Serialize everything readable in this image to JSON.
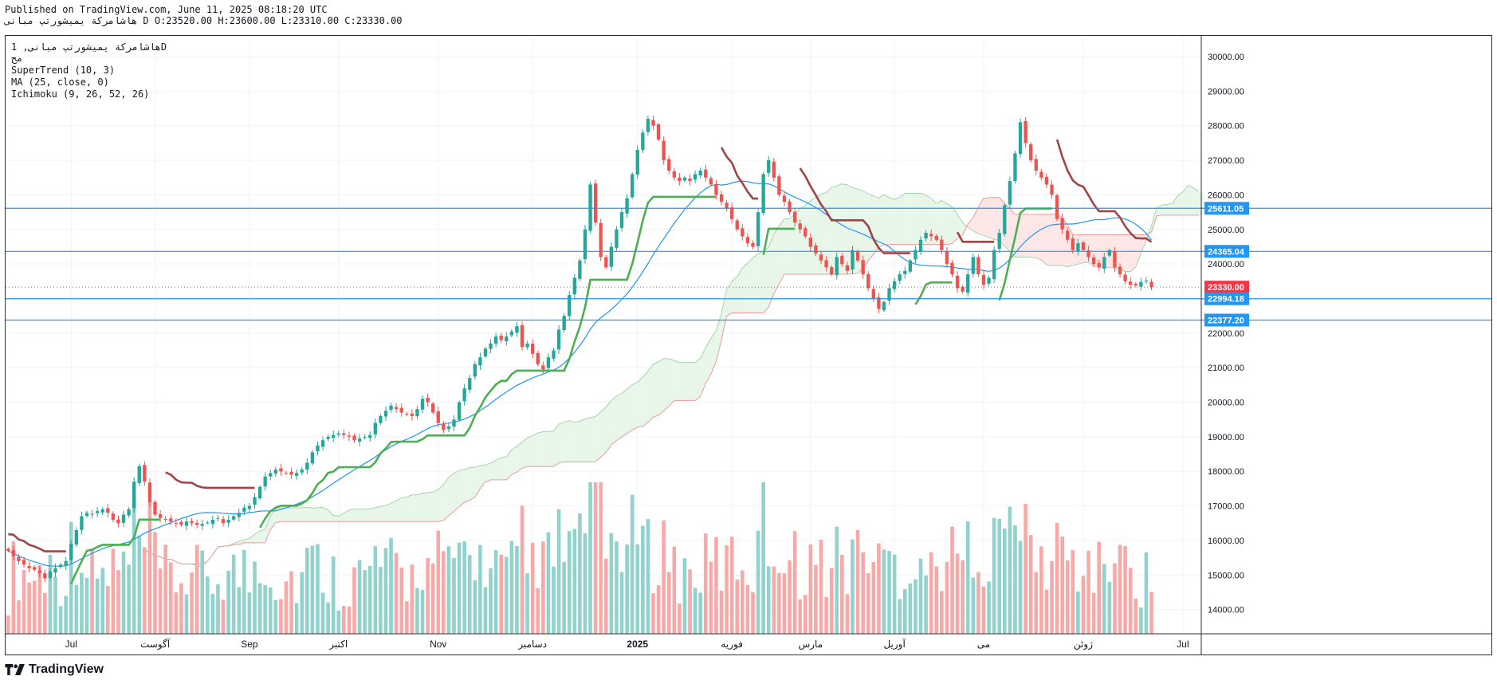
{
  "header": {
    "published": "Published on TradingView.com, June 11, 2025 08:18:20 UTC",
    "symbol_line": "هاشامرکة یمیشورتپ مبانی, 1D",
    "ohlc_line": "D O:23520.00 H:23600.00 L:23310.00 C:23330.00",
    "symbol_short": "هاشامرکة یمیشورتپ مبانی"
  },
  "legend": {
    "symbol": "هاشامرکة یمیشورتپ مبانی, 1D",
    "subtitle": "مح",
    "indicators": [
      "SuperTrend (10, 3)",
      "MA (25, close, 0)",
      "Ichimoku (9, 26, 52, 26)"
    ]
  },
  "footer": {
    "brand": "TradingView"
  },
  "colors": {
    "up": "#26a69a",
    "down": "#ef5350",
    "ma": "#2196f3",
    "supertrend_up": "#4caf50",
    "supertrend_down": "#a04546",
    "cloud_bull": "#e8f5e9",
    "cloud_bear": "#fde6e6",
    "hline": "#2196f3",
    "price_label": "#f23645"
  },
  "chart_data": {
    "type": "candlestick",
    "interval": "1D",
    "y_axis": {
      "ylim": [
        13300,
        30600
      ],
      "ticks": [
        14000,
        15000,
        16000,
        17000,
        18000,
        19000,
        20000,
        21000,
        22000,
        23000,
        24000,
        25000,
        26000,
        27000,
        28000,
        29000,
        30000
      ],
      "tick_labels": [
        "14000.00",
        "15000.00",
        "16000.00",
        "17000.00",
        "18000.00",
        "19000.00",
        "20000.00",
        "21000.00",
        "22000.00",
        "23000.00",
        "24000.00",
        "25000.00",
        "26000.00",
        "27000.00",
        "28000.00",
        "29000.00",
        "30000.00"
      ]
    },
    "x_axis": {
      "ticks": [
        {
          "label": "Jul",
          "index": 12,
          "bold": false
        },
        {
          "label": "آگوست",
          "index": 28,
          "bold": false
        },
        {
          "label": "Sep",
          "index": 46,
          "bold": false
        },
        {
          "label": "اکتبر",
          "index": 63,
          "bold": false
        },
        {
          "label": "Nov",
          "index": 82,
          "bold": false
        },
        {
          "label": "دسامبر",
          "index": 100,
          "bold": false
        },
        {
          "label": "2025",
          "index": 120,
          "bold": true
        },
        {
          "label": "فوریه",
          "index": 138,
          "bold": false
        },
        {
          "label": "مارس",
          "index": 153,
          "bold": false
        },
        {
          "label": "آوریل",
          "index": 169,
          "bold": false
        },
        {
          "label": "می",
          "index": 186,
          "bold": false
        },
        {
          "label": "ژوئن",
          "index": 205,
          "bold": false
        },
        {
          "label": "Jul",
          "index": 224,
          "bold": false
        }
      ],
      "total_slots": 228
    },
    "horizontal_lines": [
      25611.05,
      24365.04,
      22994.18,
      22377.2
    ],
    "price_labels": [
      {
        "value": 25611.05,
        "text": "25611.05",
        "color": "#2196f3"
      },
      {
        "value": 24365.04,
        "text": "24365.04",
        "color": "#2196f3"
      },
      {
        "value": 23330.0,
        "text": "23330.00",
        "color": "#f23645"
      },
      {
        "value": 22994.18,
        "text": "22994.18",
        "color": "#2196f3"
      },
      {
        "value": 22377.2,
        "text": "22377.20",
        "color": "#2196f3"
      }
    ],
    "last_close": 23330.0,
    "closes": [
      15700,
      15550,
      15400,
      15300,
      15200,
      15150,
      15050,
      14900,
      15100,
      15200,
      15300,
      15400,
      15900,
      16300,
      16700,
      16800,
      16750,
      16850,
      16900,
      16800,
      16600,
      16500,
      16750,
      16900,
      17700,
      18150,
      17700,
      17100,
      16750,
      16650,
      16600,
      16550,
      16500,
      16450,
      16550,
      16500,
      16450,
      16480,
      16520,
      16600,
      16650,
      16500,
      16600,
      16700,
      16800,
      16950,
      17000,
      17250,
      17550,
      17850,
      17950,
      18050,
      18000,
      17950,
      17900,
      17950,
      18050,
      18250,
      18550,
      18750,
      18900,
      19000,
      19050,
      19100,
      19050,
      19000,
      18900,
      18950,
      19000,
      19050,
      19400,
      19600,
      19750,
      19900,
      19800,
      19700,
      19650,
      19600,
      19800,
      20100,
      20000,
      19700,
      19400,
      19200,
      19300,
      19500,
      20000,
      20400,
      20700,
      21100,
      21300,
      21550,
      21700,
      21900,
      21800,
      21900,
      22050,
      22200,
      21600,
      21700,
      21400,
      21100,
      20950,
      21300,
      21500,
      22100,
      22500,
      23100,
      23600,
      24100,
      25000,
      26300,
      25200,
      24200,
      23900,
      24500,
      25000,
      25500,
      25900,
      26600,
      27300,
      27800,
      28200,
      28000,
      27600,
      27000,
      26700,
      26500,
      26400,
      26500,
      26400,
      26600,
      26700,
      26500,
      26300,
      26000,
      25800,
      25600,
      25300,
      25000,
      24800,
      24600,
      24500,
      25500,
      26600,
      27000,
      26500,
      26000,
      25800,
      25500,
      25200,
      25000,
      24800,
      24500,
      24300,
      24100,
      23900,
      23700,
      24200,
      24000,
      23800,
      24400,
      24100,
      23700,
      23300,
      23000,
      22700,
      22900,
      23300,
      23500,
      23700,
      23800,
      24100,
      24400,
      24700,
      24900,
      24800,
      24700,
      24400,
      24000,
      23700,
      23300,
      23200,
      23700,
      24200,
      23700,
      23400,
      23600,
      24400,
      24900,
      25700,
      26400,
      27200,
      28100,
      27500,
      27000,
      26700,
      26500,
      26300,
      26000,
      25300,
      25000,
      24700,
      24400,
      24600,
      24400,
      24200,
      24000,
      23900,
      24200,
      24400,
      23900,
      23700,
      23500,
      23400,
      23380,
      23480,
      23520,
      23330
    ],
    "ma_period": 25,
    "supertrend_period": 10,
    "supertrend_multiplier": 3,
    "ichimoku": [
      9,
      26,
      52,
      26
    ]
  }
}
